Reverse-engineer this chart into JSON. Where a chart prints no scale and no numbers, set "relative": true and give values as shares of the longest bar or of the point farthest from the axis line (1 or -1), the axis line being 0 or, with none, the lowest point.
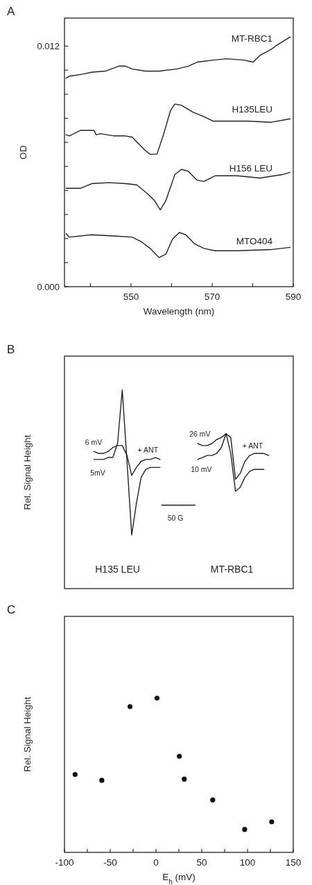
{
  "chart_data": [
    {
      "type": "line",
      "title": "A",
      "xlabel": "Wavelength  (nm)",
      "ylabel": "OD",
      "xlim": [
        533.6,
        590
      ],
      "xticks": [
        {
          "value": 540,
          "label": null
        },
        550,
        {
          "value": 560,
          "label": null
        },
        570,
        {
          "value": 580,
          "label": null
        },
        590
      ],
      "ylim": [
        0,
        0.0134
      ],
      "yticks": [
        {
          "value": 0,
          "label": "0.000"
        },
        {
          "value": 0.0012,
          "label": null
        },
        {
          "value": 0.0024,
          "label": null
        },
        {
          "value": 0.0036,
          "label": null
        },
        {
          "value": 0.0048,
          "label": null
        },
        {
          "value": 0.006,
          "label": null
        },
        {
          "value": 0.0072,
          "label": null
        },
        {
          "value": 0.0084,
          "label": null
        },
        {
          "value": 0.0096,
          "label": null
        },
        {
          "value": 0.0108,
          "label": null
        },
        0.012
      ],
      "series": [
        {
          "name": "MT-RBC1",
          "color": "#222222",
          "x": [
            534.0,
            534.8,
            538.1,
            540.3,
            543.6,
            547.0,
            548.6,
            550.3,
            553.6,
            556.9,
            561.3,
            564.1,
            566.3,
            570.2,
            573.5,
            577.9,
            580.1,
            581.8,
            584.5,
            585.6,
            587.8,
            589.2
          ],
          "values": [
            0.0104,
            0.0105,
            0.0106,
            0.0107,
            0.01075,
            0.011,
            0.011,
            0.01086,
            0.01075,
            0.01075,
            0.01086,
            0.011,
            0.0112,
            0.0113,
            0.01137,
            0.0113,
            0.0112,
            0.01154,
            0.01183,
            0.012,
            0.01228,
            0.01245
          ]
        },
        {
          "name": "H135LEU",
          "color": "#222222",
          "x": [
            534.0,
            534.8,
            537.6,
            540.9,
            541.4,
            542.5,
            545.9,
            548.6,
            550.3,
            551.4,
            553.6,
            554.7,
            556.4,
            558.0,
            559.7,
            560.8,
            562.4,
            565.2,
            568.0,
            570.2,
            573.5,
            579.0,
            584.5,
            589.2
          ],
          "values": [
            0.00758,
            0.00752,
            0.0078,
            0.0078,
            0.00758,
            0.00763,
            0.00752,
            0.00752,
            0.00746,
            0.00723,
            0.00678,
            0.00661,
            0.00661,
            0.00758,
            0.00877,
            0.00911,
            0.00905,
            0.00871,
            0.00848,
            0.00826,
            0.00826,
            0.00826,
            0.0082,
            0.00837
          ]
        },
        {
          "name": "H156 LEU",
          "color": "#222222",
          "x": [
            534.0,
            537.6,
            540.3,
            544.7,
            548.6,
            551.4,
            554.1,
            555.8,
            557.2,
            558.6,
            560.8,
            562.4,
            564.1,
            566.3,
            568.0,
            570.7,
            576.2,
            581.8,
            587.3,
            589.2
          ],
          "values": [
            0.00491,
            0.00491,
            0.00514,
            0.00519,
            0.00514,
            0.00508,
            0.00463,
            0.00429,
            0.00383,
            0.00429,
            0.00559,
            0.00585,
            0.00576,
            0.00531,
            0.00525,
            0.00553,
            0.00553,
            0.00542,
            0.00559,
            0.0057
          ]
        },
        {
          "name": "MTO404",
          "color": "#222222",
          "x": [
            534.0,
            534.8,
            540.3,
            545.9,
            550.3,
            552.5,
            554.7,
            556.9,
            558.6,
            560.2,
            561.9,
            563.5,
            565.7,
            568.0,
            570.7,
            576.2,
            584.5,
            589.2
          ],
          "values": [
            0.00264,
            0.00247,
            0.00259,
            0.00253,
            0.00247,
            0.00225,
            0.00191,
            0.00145,
            0.00162,
            0.00236,
            0.0027,
            0.00259,
            0.00213,
            0.00191,
            0.00179,
            0.00179,
            0.00185,
            0.00196
          ]
        }
      ]
    },
    {
      "type": "line",
      "title": "B",
      "ylabel": "Rel. Signal Height",
      "relative": true,
      "categories": [
        null,
        null,
        null,
        null,
        null,
        null,
        null,
        null,
        null,
        null,
        null,
        null,
        null,
        null,
        null,
        null,
        null,
        null,
        null,
        null,
        null,
        null,
        null,
        null,
        null,
        null,
        null,
        null,
        null,
        null,
        null,
        null,
        null,
        null,
        null,
        null,
        null,
        null,
        null,
        null,
        null,
        null,
        null,
        null,
        null,
        null,
        null,
        null,
        null
      ],
      "annotations": [
        "6 mV",
        "5mV",
        "+ ANT",
        "26 mV",
        "10 mV",
        "+ ANT",
        "50 G",
        "H135 LEU",
        "MT-RBC1"
      ],
      "series": [
        {
          "color": "#222222",
          "values": [
            null,
            null,
            null,
            null,
            null,
            null,
            0.65,
            0.65,
            0.65,
            0.66,
            0.66,
            0.73,
            1,
            0.64,
            0.27,
            0.43,
            0.56,
            0.6,
            0.61,
            0.61,
            0.61,
            null,
            null,
            null,
            null,
            null,
            null,
            null,
            null,
            null,
            null,
            null,
            null,
            null,
            null,
            null,
            null,
            null,
            null,
            null,
            null,
            null,
            null,
            null,
            null,
            null,
            null,
            null,
            null
          ]
        },
        {
          "color": "#222222",
          "values": [
            null,
            null,
            null,
            null,
            null,
            null,
            0.69,
            0.68,
            0.68,
            0.69,
            0.71,
            0.72,
            0.72,
            0.67,
            0.57,
            0.61,
            0.64,
            0.65,
            0.65,
            0.66,
            0.65,
            null,
            null,
            null,
            null,
            null,
            null,
            null,
            null,
            null,
            null,
            null,
            null,
            null,
            null,
            null,
            null,
            null,
            null,
            null,
            null,
            null,
            null,
            null,
            null,
            null,
            null,
            null,
            null
          ]
        },
        {
          "color": "#222222",
          "values": [
            null,
            null,
            null,
            null,
            null,
            null,
            null,
            null,
            null,
            null,
            null,
            null,
            null,
            null,
            null,
            null,
            null,
            null,
            null,
            null,
            null,
            null,
            null,
            null,
            null,
            null,
            null,
            null,
            0.73,
            0.72,
            0.72,
            0.73,
            0.75,
            0.76,
            0.78,
            0.76,
            0.55,
            0.58,
            0.64,
            0.67,
            0.68,
            0.68,
            0.68,
            0.67,
            null,
            null,
            null,
            null,
            null
          ]
        },
        {
          "color": "#222222",
          "values": [
            null,
            null,
            null,
            null,
            null,
            null,
            null,
            null,
            null,
            null,
            null,
            null,
            null,
            null,
            null,
            null,
            null,
            null,
            null,
            null,
            null,
            null,
            null,
            null,
            null,
            null,
            null,
            null,
            0.65,
            0.66,
            0.67,
            0.67,
            0.68,
            0.71,
            0.78,
            0.68,
            0.49,
            0.51,
            0.56,
            0.59,
            0.6,
            0.6,
            0.6,
            null,
            null,
            null,
            null,
            null,
            null
          ]
        }
      ]
    },
    {
      "type": "scatter",
      "title": "C",
      "xlabel": "E$_{h}$  (mV)",
      "ylabel": "Rel. Signal Height",
      "relative": true,
      "marker": "circle",
      "xlim": [
        -100,
        150
      ],
      "xticks": [
        -100,
        {
          "value": -75,
          "label": null
        },
        -50,
        {
          "value": -25,
          "label": null
        },
        0,
        {
          "value": 25,
          "label": null
        },
        50,
        {
          "value": 75,
          "label": null
        },
        100,
        {
          "value": 125,
          "label": null
        },
        150
      ],
      "series": [
        {
          "color": "#111111",
          "x": [
            -88.4,
            -59.2,
            -28.4,
            1.1,
            25.5,
            30.9,
            62.0,
            96.9,
            126.4
          ],
          "values": [
            0.505,
            0.467,
            0.945,
            1,
            0.623,
            0.475,
            0.34,
            0.149,
            0.198
          ]
        }
      ]
    }
  ]
}
